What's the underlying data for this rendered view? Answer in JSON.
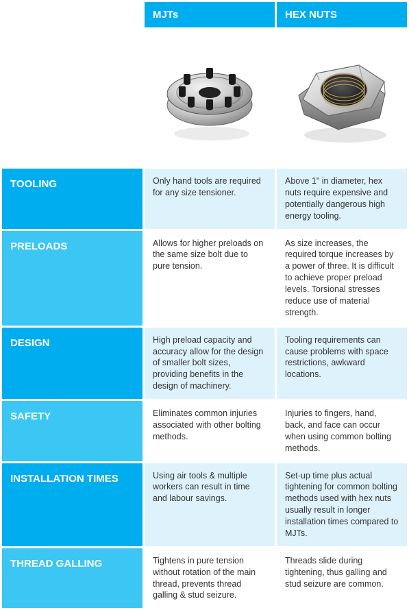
{
  "colors": {
    "header_bg": "#00aeef",
    "row_header_dark": "#00aeef",
    "row_header_light": "#3bc6f3",
    "data_dark": "#def2fb",
    "data_light": "#ffffff",
    "text_on_blue": "#ffffff",
    "text_body": "#333333"
  },
  "columns": {
    "mjt": "MJTs",
    "hex": "HEX NUTS"
  },
  "rows": [
    {
      "label": "TOOLING",
      "mjt": "Only hand tools are required for any size tensioner.",
      "hex": "Above 1\" in diameter, hex nuts require expensive and potentially dangerous high energy tooling."
    },
    {
      "label": "PRELOADS",
      "mjt": "Allows for higher preloads on the same size bolt due to pure tension.",
      "hex": "As size increases, the required torque increases by a power of three. It is difficult to achieve proper preload levels. Torsional stresses reduce use of material strength."
    },
    {
      "label": "DESIGN",
      "mjt": "High preload capacity and accuracy allow for the design of smaller bolt sizes, providing benefits in the design of machinery.",
      "hex": "Tooling requirements can cause problems with space restrictions, awkward locations."
    },
    {
      "label": "SAFETY",
      "mjt": "Eliminates common injuries associated with other bolting methods.",
      "hex": "Injuries to fingers, hand, back, and face can occur when using common bolting methods."
    },
    {
      "label": "INSTALLATION TIMES",
      "mjt": "Using air tools & multiple workers can result in time and labour savings.",
      "hex": "Set-up time plus actual tightening for common bolting methods used with hex nuts usually result in longer installation times compared to MJTs."
    },
    {
      "label": "THREAD GALLING",
      "mjt": "Tightens in pure tension without rotation of the main thread, prevents thread galling & stud seizure.",
      "hex": "Threads slide during tightening, thus galling and stud seizure are common."
    }
  ]
}
